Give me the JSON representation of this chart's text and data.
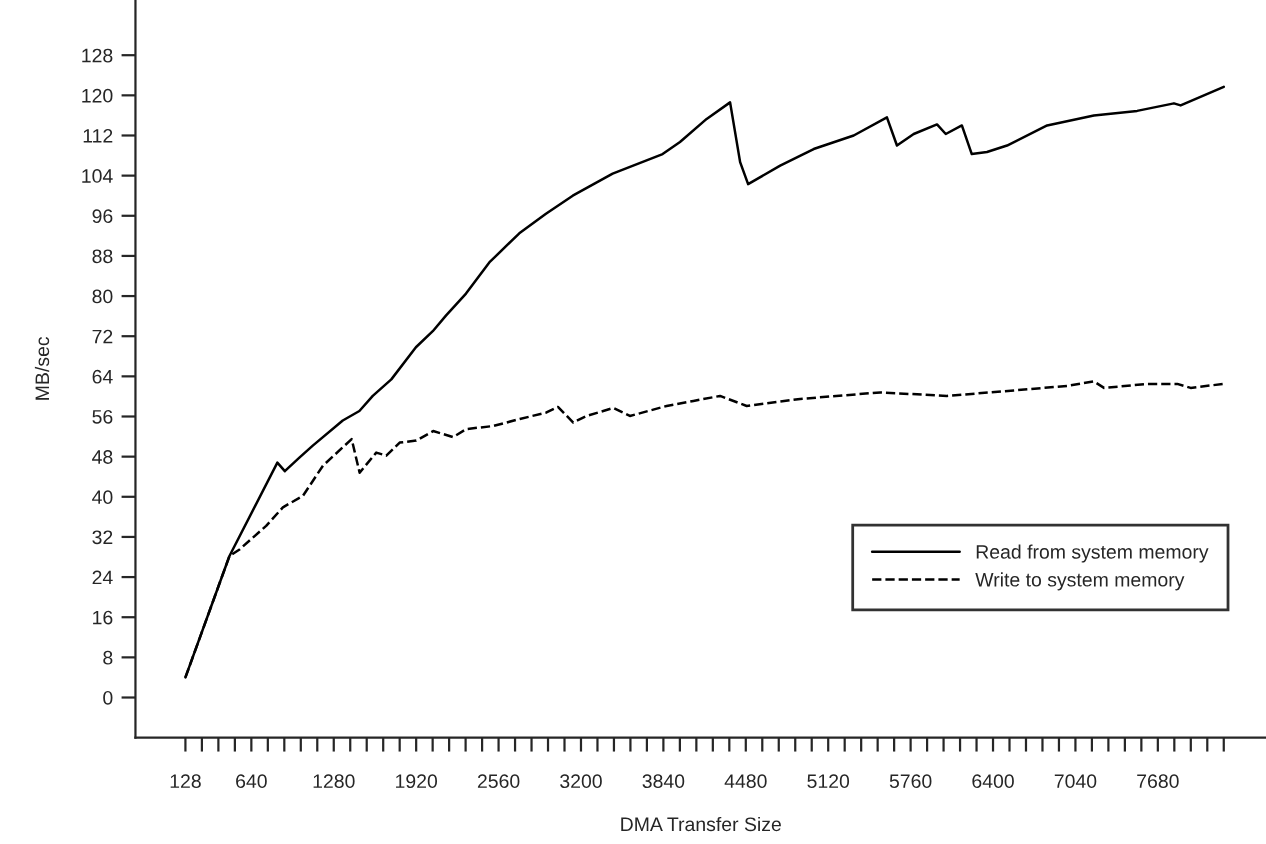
{
  "chart_data": {
    "type": "line",
    "xlabel": "DMA Transfer Size",
    "ylabel": "MB/sec",
    "xlim": [
      -260,
      8520
    ],
    "ylim": [
      -8,
      139
    ],
    "xticks": [
      128,
      {
        "value": 256,
        "label": null
      },
      {
        "value": 384,
        "label": null
      },
      {
        "value": 512,
        "label": null
      },
      640,
      {
        "value": 768,
        "label": null
      },
      {
        "value": 896,
        "label": null
      },
      {
        "value": 1024,
        "label": null
      },
      {
        "value": 1152,
        "label": null
      },
      1280,
      {
        "value": 1408,
        "label": null
      },
      {
        "value": 1536,
        "label": null
      },
      {
        "value": 1664,
        "label": null
      },
      {
        "value": 1792,
        "label": null
      },
      1920,
      {
        "value": 2048,
        "label": null
      },
      {
        "value": 2176,
        "label": null
      },
      {
        "value": 2304,
        "label": null
      },
      {
        "value": 2432,
        "label": null
      },
      2560,
      {
        "value": 2688,
        "label": null
      },
      {
        "value": 2816,
        "label": null
      },
      {
        "value": 2944,
        "label": null
      },
      {
        "value": 3072,
        "label": null
      },
      3200,
      {
        "value": 3328,
        "label": null
      },
      {
        "value": 3456,
        "label": null
      },
      {
        "value": 3584,
        "label": null
      },
      {
        "value": 3712,
        "label": null
      },
      3840,
      {
        "value": 3968,
        "label": null
      },
      {
        "value": 4096,
        "label": null
      },
      {
        "value": 4224,
        "label": null
      },
      {
        "value": 4352,
        "label": null
      },
      4480,
      {
        "value": 4608,
        "label": null
      },
      {
        "value": 4736,
        "label": null
      },
      {
        "value": 4864,
        "label": null
      },
      {
        "value": 4992,
        "label": null
      },
      5120,
      {
        "value": 5248,
        "label": null
      },
      {
        "value": 5376,
        "label": null
      },
      {
        "value": 5504,
        "label": null
      },
      {
        "value": 5632,
        "label": null
      },
      5760,
      {
        "value": 5888,
        "label": null
      },
      {
        "value": 6016,
        "label": null
      },
      {
        "value": 6144,
        "label": null
      },
      {
        "value": 6272,
        "label": null
      },
      6400,
      {
        "value": 6528,
        "label": null
      },
      {
        "value": 6656,
        "label": null
      },
      {
        "value": 6784,
        "label": null
      },
      {
        "value": 6912,
        "label": null
      },
      7040,
      {
        "value": 7168,
        "label": null
      },
      {
        "value": 7296,
        "label": null
      },
      {
        "value": 7424,
        "label": null
      },
      {
        "value": 7552,
        "label": null
      },
      7680,
      {
        "value": 7808,
        "label": null
      },
      {
        "value": 7936,
        "label": null
      },
      {
        "value": 8064,
        "label": null
      },
      {
        "value": 8192,
        "label": null
      }
    ],
    "yticks": [
      0,
      8,
      16,
      24,
      32,
      40,
      48,
      56,
      64,
      72,
      80,
      88,
      96,
      104,
      112,
      120,
      128
    ],
    "grid": false,
    "legend": "bottom right",
    "marker": "none",
    "series": [
      {
        "name": "Read from system memory",
        "color": "#000000",
        "line_style": "solid",
        "x": [
          128,
          470,
          842,
          900,
          1013,
          1117,
          1350,
          1479,
          1583,
          1727,
          1918,
          2049,
          2151,
          2307,
          2488,
          2721,
          2928,
          3136,
          3446,
          3834,
          3969,
          4176,
          4358,
          4436,
          4498,
          4747,
          5007,
          5318,
          5576,
          5654,
          5784,
          5965,
          6033,
          6158,
          6235,
          6353,
          6509,
          6820,
          7183,
          7519,
          7805,
          7857,
          8192
        ],
        "values": [
          4,
          28.2,
          46.8,
          45.1,
          47.8,
          50.2,
          55.2,
          57.1,
          60.1,
          63.4,
          69.8,
          73.0,
          76.1,
          80.5,
          86.7,
          92.5,
          96.4,
          100.0,
          104.4,
          108.3,
          110.7,
          115.3,
          118.6,
          106.7,
          102.3,
          106.0,
          109.3,
          112.0,
          115.6,
          110.0,
          112.3,
          114.2,
          112.3,
          114.0,
          108.3,
          108.7,
          110.0,
          114.0,
          116.0,
          116.9,
          118.4,
          118.0,
          121.7
        ]
      },
      {
        "name": "Write to system memory",
        "color": "#000000",
        "line_style": "dashed",
        "x": [
          128,
          470,
          548,
          755,
          885,
          1041,
          1196,
          1419,
          1481,
          1610,
          1688,
          1792,
          1921,
          2052,
          2207,
          2310,
          2518,
          2725,
          2932,
          3021,
          3140,
          3243,
          3451,
          3580,
          3865,
          4073,
          4280,
          4487,
          4902,
          5524,
          6042,
          6562,
          6976,
          7183,
          7262,
          7597,
          7831,
          7935,
          8192
        ],
        "values": [
          4,
          28.2,
          29.5,
          34.2,
          37.9,
          40.2,
          46.2,
          51.5,
          44.8,
          48.8,
          48.2,
          50.8,
          51.2,
          53.1,
          51.9,
          53.5,
          54.1,
          55.5,
          56.8,
          57.9,
          54.8,
          56.1,
          57.7,
          56.1,
          58.1,
          59.1,
          60.1,
          58.1,
          59.5,
          60.8,
          60.1,
          61.2,
          62.1,
          63.0,
          61.7,
          62.5,
          62.5,
          61.7,
          62.5
        ]
      }
    ]
  }
}
